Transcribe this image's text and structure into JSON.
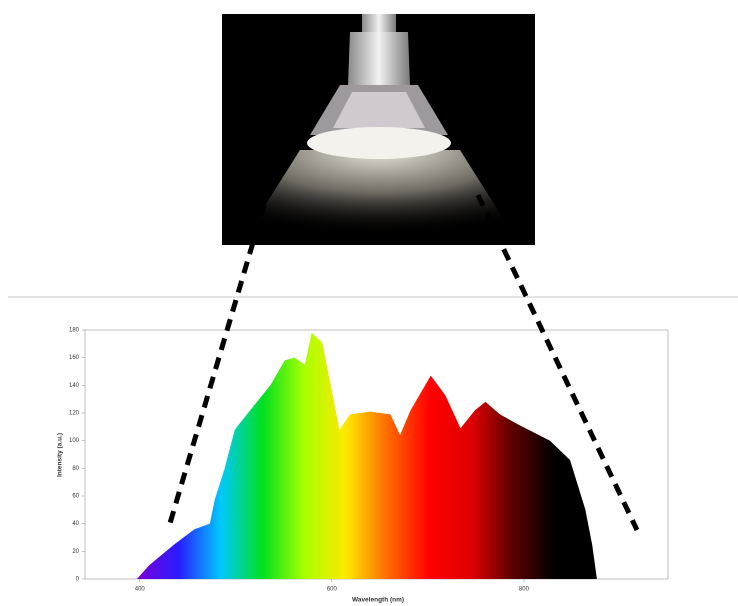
{
  "chart_data": {
    "type": "area",
    "x_label": "Wavelength (nm)",
    "y_label": "Intensity (a.u.)",
    "x": [
      397,
      410,
      436,
      457,
      473,
      478,
      488,
      499,
      515,
      536,
      551,
      561,
      572,
      579,
      590,
      598,
      608,
      619,
      640,
      661,
      671,
      682,
      703,
      718,
      734,
      749,
      760,
      775,
      796,
      827,
      848,
      864,
      871,
      876
    ],
    "values": [
      0,
      10,
      25,
      36,
      40,
      57,
      79,
      108,
      122,
      140,
      158,
      160,
      155,
      178,
      171,
      143,
      108,
      119,
      121,
      119,
      104,
      122,
      147,
      133,
      109,
      122,
      128,
      119,
      111,
      100,
      86,
      50,
      25,
      0
    ],
    "xlim": [
      343,
      950
    ],
    "xticks": [
      400,
      600,
      800
    ],
    "ylim": [
      0,
      180
    ],
    "yticks": [
      0,
      20,
      40,
      60,
      80,
      100,
      120,
      140,
      160,
      180
    ],
    "gradient": [
      "#7a00d6",
      "#2a1cff",
      "#00c8ff",
      "#00e020",
      "#a8ff00",
      "#ffe800",
      "#ff6a00",
      "#ff0000",
      "#e00000",
      "#5a0000",
      "#000000",
      "#000000"
    ]
  }
}
